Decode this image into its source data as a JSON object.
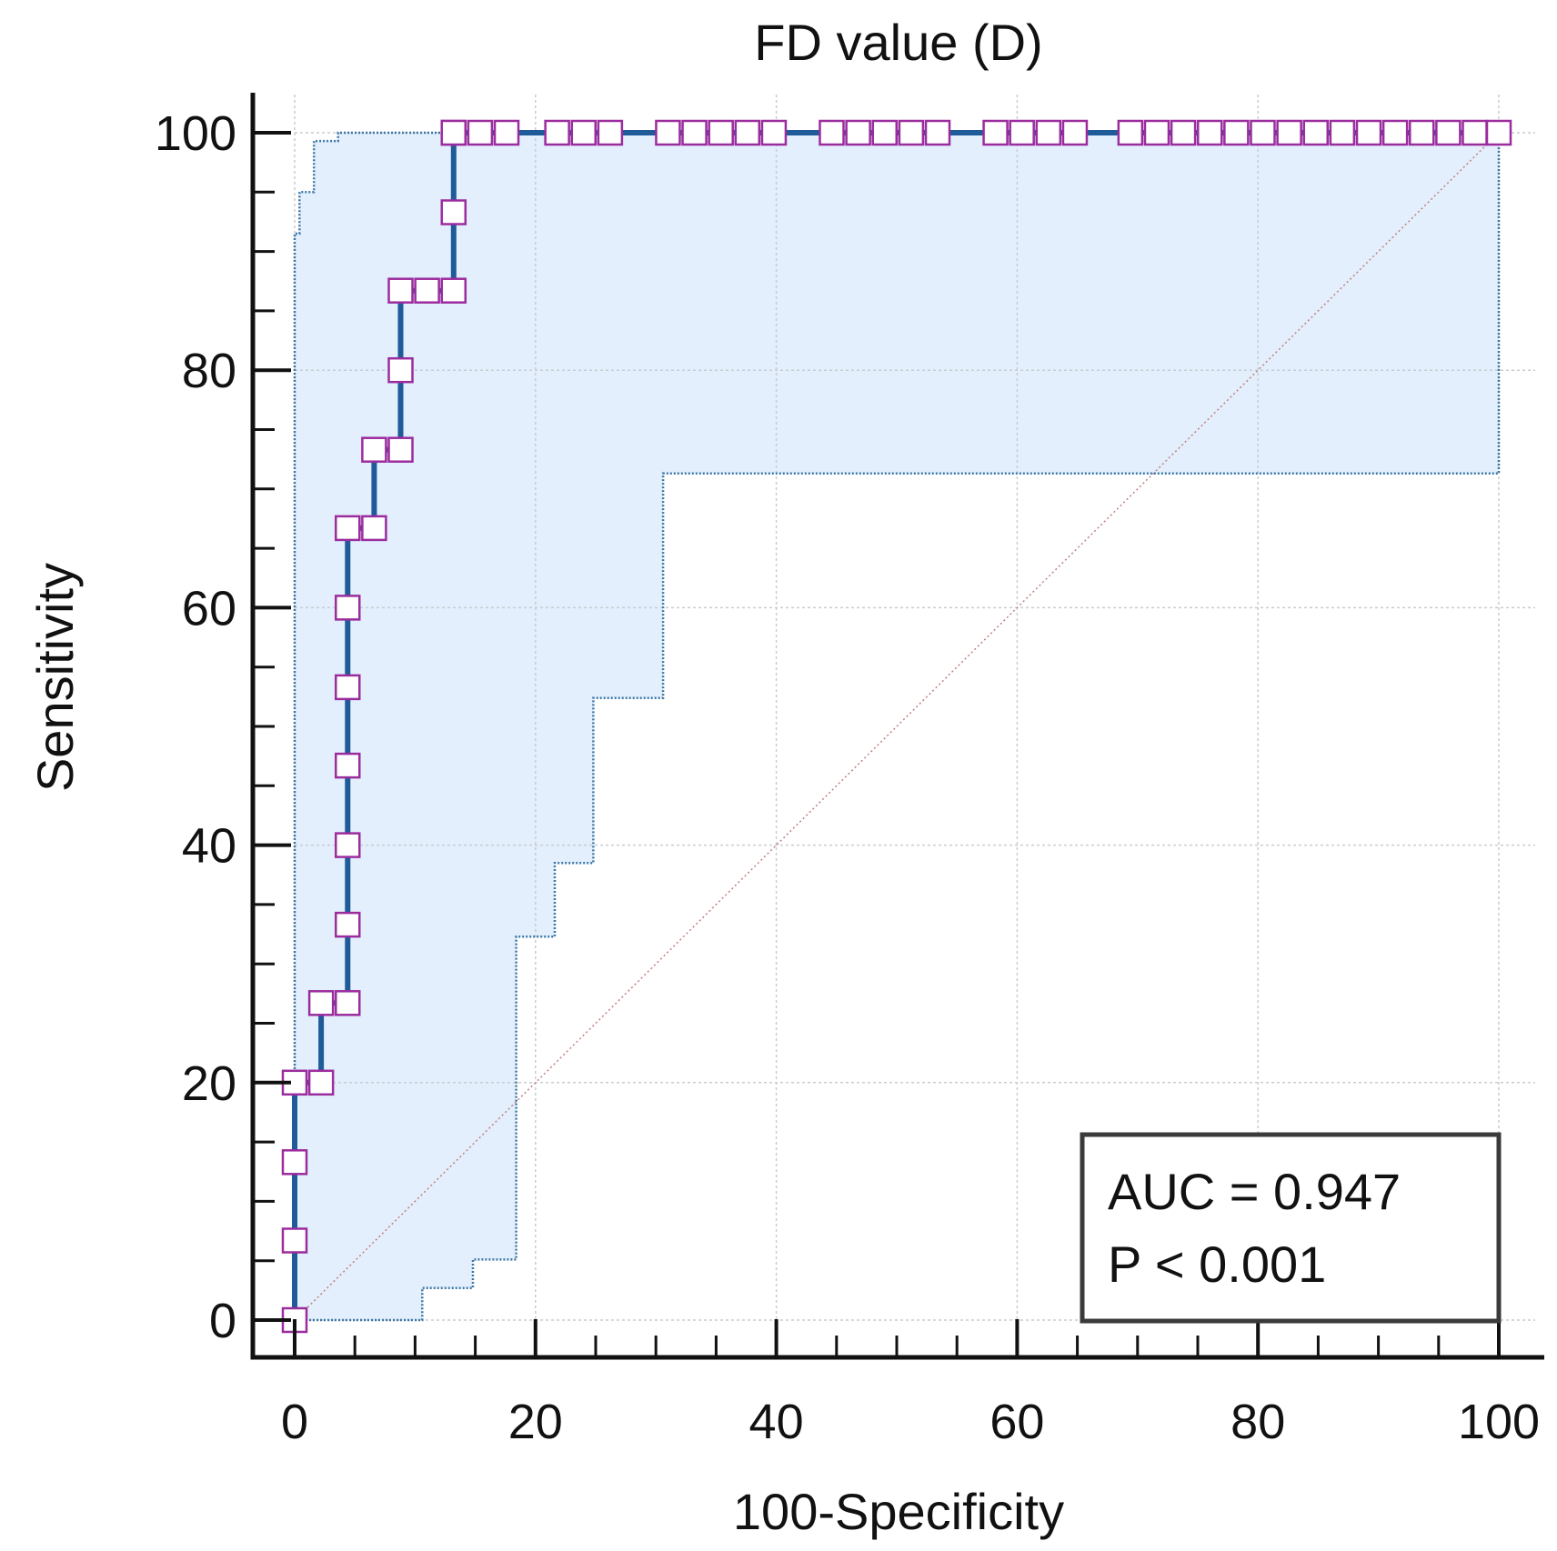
{
  "chart_data": {
    "type": "line",
    "title": "FD value (D)",
    "xlabel": "100-Specificity",
    "ylabel": "Sensitivity",
    "xlim": [
      0,
      100
    ],
    "ylim": [
      0,
      100
    ],
    "xticks": [
      "0",
      "20",
      "40",
      "60",
      "80",
      "100"
    ],
    "yticks": [
      "0",
      "20",
      "40",
      "60",
      "80",
      "100"
    ],
    "grid": true,
    "legend": "none",
    "annotations": [
      "AUC = 0.947",
      "P < 0.001"
    ],
    "colors": {
      "roc_line": "#1f5a99",
      "marker_edge": "#9b2c9e",
      "ci_fill": "#e3effc",
      "ci_line": "#3b77a8",
      "reference_line": "#c08080",
      "grid": "#c8ccd2",
      "axis": "#111111"
    },
    "series": [
      {
        "kind": "roc-curve",
        "x": [
          0,
          0,
          0,
          0,
          2.2,
          2.2,
          4.4,
          4.4,
          4.4,
          4.4,
          4.4,
          4.4,
          4.4,
          6.6,
          6.6,
          8.8,
          8.8,
          8.8,
          11,
          13.2,
          13.2,
          13.2,
          13.2,
          15.4,
          17.6,
          21.8,
          24,
          26.2,
          31,
          33.2,
          35.4,
          37.6,
          39.8,
          44.6,
          46.8,
          49,
          51.2,
          53.4,
          58.2,
          60.4,
          62.6,
          64.8,
          69.4,
          71.6,
          73.8,
          76,
          78.2,
          80.4,
          82.6,
          84.8,
          87,
          89.2,
          91.4,
          93.6,
          95.8,
          98,
          100
        ],
        "y": [
          0,
          6.7,
          13.3,
          20,
          20,
          26.7,
          26.7,
          33.3,
          40,
          46.7,
          53.3,
          60,
          66.7,
          66.7,
          73.3,
          73.3,
          80,
          86.7,
          86.7,
          86.7,
          93.3,
          100,
          100,
          100,
          100,
          100,
          100,
          100,
          100,
          100,
          100,
          100,
          100,
          100,
          100,
          100,
          100,
          100,
          100,
          100,
          100,
          100,
          100,
          100,
          100,
          100,
          100,
          100,
          100,
          100,
          100,
          100,
          100,
          100,
          100,
          100,
          100
        ]
      },
      {
        "kind": "ci-upper",
        "x": [
          0,
          0,
          0.4,
          0.4,
          1.6,
          1.6,
          3.6,
          3.6,
          13.5,
          100
        ],
        "y": [
          0,
          91.5,
          91.5,
          95,
          95,
          99.3,
          99.3,
          100,
          100,
          100
        ]
      },
      {
        "kind": "ci-lower",
        "x": [
          0,
          10.6,
          10.6,
          14.8,
          14.8,
          18.4,
          18.4,
          21.6,
          21.6,
          24.8,
          24.8,
          30.6,
          30.6,
          100,
          100
        ],
        "y": [
          0,
          0,
          2.7,
          2.7,
          5.1,
          5.1,
          32.3,
          32.3,
          38.5,
          38.5,
          52.4,
          52.4,
          71.3,
          71.3,
          100
        ]
      },
      {
        "kind": "reference",
        "x": [
          0,
          100
        ],
        "y": [
          0,
          100
        ]
      }
    ]
  }
}
